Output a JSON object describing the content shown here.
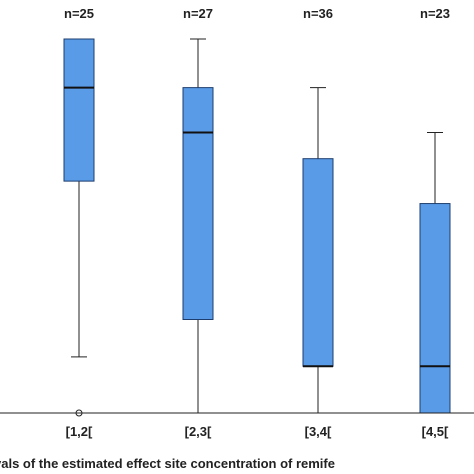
{
  "chart_data": {
    "type": "boxplot",
    "xlabel": "vals of the estimated effect site concentration of remife",
    "ylim": [
      0,
      100
    ],
    "categories": [
      "[1,2[",
      "[2,3[",
      "[3,4[",
      "[4,5["
    ],
    "counts": [
      "n=25",
      "n=27",
      "n=36",
      "n=23"
    ],
    "boxes": [
      {
        "whisker_low": 15,
        "q1": 62,
        "median": 87,
        "q3": 100,
        "whisker_high": 100,
        "outliers": [
          0
        ]
      },
      {
        "whisker_low": 0,
        "q1": 25,
        "median": 75,
        "q3": 87,
        "whisker_high": 100,
        "outliers": []
      },
      {
        "whisker_low": 0,
        "q1": 12.5,
        "median": 12.5,
        "q3": 68,
        "whisker_high": 87,
        "outliers": []
      },
      {
        "whisker_low": 0,
        "q1": 0,
        "median": 12.5,
        "q3": 56,
        "whisker_high": 75,
        "outliers": []
      }
    ],
    "colors": {
      "box_fill": "#5a9be8",
      "box_stroke": "#1c3d6e",
      "line": "#222222"
    },
    "grid": false
  }
}
